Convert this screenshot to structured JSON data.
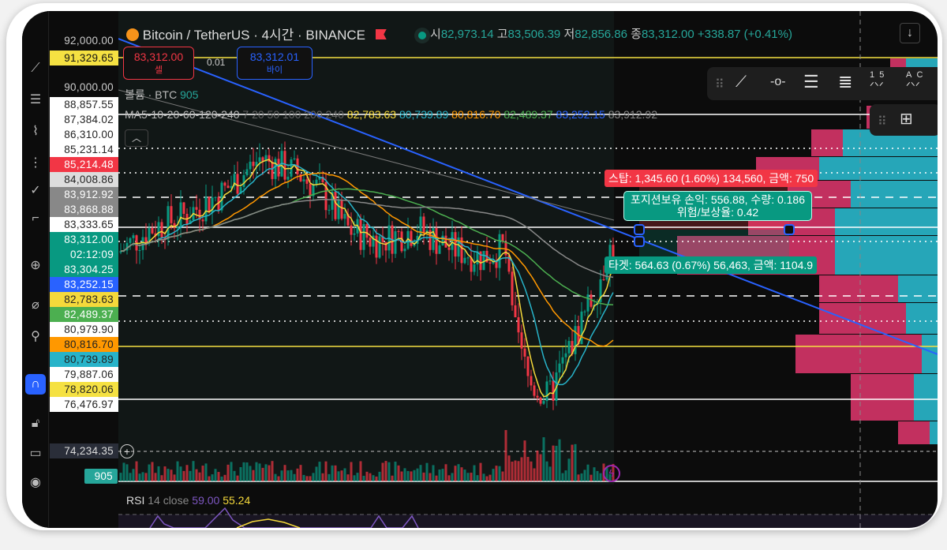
{
  "header": {
    "symbol": "Bitcoin / TetherUS · 4시간 · BINANCE",
    "ohlc": {
      "o_label": "시",
      "o": "82,973.14",
      "h_label": "고",
      "h": "83,506.39",
      "l_label": "저",
      "l": "82,856.86",
      "c_label": "종",
      "c": "83,312.00",
      "change": "+338.87 (+0.41%)"
    }
  },
  "trade": {
    "sell_price": "83,312.00",
    "sell_label": "셀",
    "spread": "0.01",
    "buy_price": "83,312.01",
    "buy_label": "바이"
  },
  "volume_legend": {
    "label": "볼륨 · BTC",
    "value": "905"
  },
  "ma_legend": {
    "label": "MA5-10-20-60-120-240",
    "params": "7 20 50 100 200 240",
    "values": [
      "82,783.63",
      "80,739.89",
      "80,816.70",
      "82,489.37",
      "83,252.15",
      "83,912.92"
    ],
    "colors": [
      "#f5d93b",
      "#27b3c9",
      "#ff9800",
      "#4caf50",
      "#2962ff",
      "#999999"
    ]
  },
  "price_axis": [
    {
      "v": "92,000.00",
      "bg": "transparent",
      "fg": "#ccc"
    },
    {
      "v": "91,329.65",
      "bg": "#f5e142",
      "fg": "#111"
    },
    {
      "v": "90,000.00",
      "bg": "transparent",
      "fg": "#ccc"
    },
    {
      "v": "88,857.55",
      "bg": "#ffffff",
      "fg": "#222"
    },
    {
      "v": "87,384.02",
      "bg": "#ffffff",
      "fg": "#222"
    },
    {
      "v": "86,310.00",
      "bg": "#ffffff",
      "fg": "#222"
    },
    {
      "v": "85,231.14",
      "bg": "#ffffff",
      "fg": "#222"
    },
    {
      "v": "85,214.48",
      "bg": "#f23645",
      "fg": "#fff"
    },
    {
      "v": "84,008.86",
      "bg": "#dddddd",
      "fg": "#222"
    },
    {
      "v": "83,912.92",
      "bg": "#888888",
      "fg": "#fff"
    },
    {
      "v": "83,868.88",
      "bg": "#888888",
      "fg": "#fff"
    },
    {
      "v": "83,333.65",
      "bg": "#ffffff",
      "fg": "#222"
    },
    {
      "v": "83,312.00",
      "bg": "#089981",
      "fg": "#fff"
    },
    {
      "v": "02:12:09",
      "bg": "#089981",
      "fg": "#fff"
    },
    {
      "v": "83,304.25",
      "bg": "#089981",
      "fg": "#fff"
    },
    {
      "v": "83,252.15",
      "bg": "#2962ff",
      "fg": "#fff"
    },
    {
      "v": "82,783.63",
      "bg": "#f5d93b",
      "fg": "#222"
    },
    {
      "v": "82,489.37",
      "bg": "#4caf50",
      "fg": "#fff"
    },
    {
      "v": "80,979.90",
      "bg": "#ffffff",
      "fg": "#222"
    },
    {
      "v": "80,816.70",
      "bg": "#ff9800",
      "fg": "#222"
    },
    {
      "v": "80,739.89",
      "bg": "#27b3c9",
      "fg": "#222"
    },
    {
      "v": "79,887.06",
      "bg": "#ffffff",
      "fg": "#222"
    },
    {
      "v": "78,820.06",
      "bg": "#f5e142",
      "fg": "#222"
    },
    {
      "v": "76,476.97",
      "bg": "#ffffff",
      "fg": "#222"
    },
    {
      "v": "74,234.35",
      "bg": "#2a2e39",
      "fg": "#ddd"
    }
  ],
  "volume_axis_label": "905",
  "position_tool": {
    "stop": "스탑: 1,345.60 (1.60%) 134,560, 금액: 750",
    "pnl": "포지션보유 손익: 556.88, 수량: 0.186",
    "rr": "위험/보상율: 0.42",
    "target": "타겟: 564.63 (0.67%) 56,463, 금액: 1104.9"
  },
  "rsi": {
    "label": "RSI",
    "params": "14 close",
    "value1": "59.00",
    "value2": "55.24"
  },
  "drawing_toolbar": {
    "items": [
      "trend-line-icon",
      "horizontal-ray-icon",
      "parallel-channel-icon",
      "fib-retracement-icon",
      "elliott-wave-15-icon",
      "abc-pattern-icon"
    ],
    "wave_labels": [
      "1",
      "5",
      "A",
      "C"
    ]
  },
  "colors": {
    "up": "#089981",
    "down": "#f23645",
    "trend": "#2962ff",
    "profile_up": "#26a6b8",
    "profile_down": "#c2305f"
  }
}
